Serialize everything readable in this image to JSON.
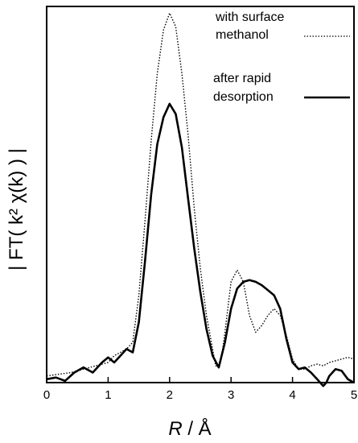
{
  "chart_data": {
    "type": "line",
    "title": "",
    "xlabel": {
      "italic": "R",
      "rest": " / Å"
    },
    "ylabel": "| FT( k² χ(k) ) |",
    "xlim": [
      0,
      5
    ],
    "ylim": [
      0,
      1.12
    ],
    "xticks": [
      "0",
      "1",
      "2",
      "3",
      "4",
      "5"
    ],
    "y_ticks_shown": false,
    "grid": false,
    "legend_position": "top-right",
    "series": [
      {
        "name": "with surface methanol",
        "line_style": "dotted",
        "color": "#000000",
        "points": [
          [
            0,
            0.02
          ],
          [
            0.2,
            0.025
          ],
          [
            0.4,
            0.03
          ],
          [
            0.6,
            0.04
          ],
          [
            0.8,
            0.05
          ],
          [
            1.0,
            0.06
          ],
          [
            1.1,
            0.08
          ],
          [
            1.2,
            0.09
          ],
          [
            1.3,
            0.1
          ],
          [
            1.4,
            0.12
          ],
          [
            1.5,
            0.26
          ],
          [
            1.6,
            0.48
          ],
          [
            1.7,
            0.72
          ],
          [
            1.8,
            0.92
          ],
          [
            1.9,
            1.05
          ],
          [
            2.0,
            1.1
          ],
          [
            2.1,
            1.06
          ],
          [
            2.2,
            0.92
          ],
          [
            2.3,
            0.74
          ],
          [
            2.4,
            0.52
          ],
          [
            2.5,
            0.34
          ],
          [
            2.6,
            0.2
          ],
          [
            2.7,
            0.1
          ],
          [
            2.75,
            0.05
          ],
          [
            2.8,
            0.05
          ],
          [
            2.85,
            0.08
          ],
          [
            2.9,
            0.15
          ],
          [
            3.0,
            0.3
          ],
          [
            3.1,
            0.335
          ],
          [
            3.2,
            0.3
          ],
          [
            3.3,
            0.2
          ],
          [
            3.4,
            0.15
          ],
          [
            3.5,
            0.17
          ],
          [
            3.6,
            0.2
          ],
          [
            3.7,
            0.22
          ],
          [
            3.8,
            0.2
          ],
          [
            3.9,
            0.14
          ],
          [
            4.0,
            0.07
          ],
          [
            4.1,
            0.04
          ],
          [
            4.2,
            0.04
          ],
          [
            4.3,
            0.05
          ],
          [
            4.4,
            0.055
          ],
          [
            4.5,
            0.05
          ],
          [
            4.6,
            0.06
          ],
          [
            4.7,
            0.065
          ],
          [
            4.8,
            0.07
          ],
          [
            4.9,
            0.075
          ],
          [
            5.0,
            0.07
          ]
        ]
      },
      {
        "name": "after rapid desorption",
        "line_style": "solid",
        "color": "#000000",
        "points": [
          [
            0,
            0.01
          ],
          [
            0.15,
            0.015
          ],
          [
            0.3,
            0.005
          ],
          [
            0.45,
            0.03
          ],
          [
            0.6,
            0.045
          ],
          [
            0.75,
            0.03
          ],
          [
            0.9,
            0.06
          ],
          [
            1.0,
            0.075
          ],
          [
            1.1,
            0.06
          ],
          [
            1.2,
            0.08
          ],
          [
            1.3,
            0.1
          ],
          [
            1.4,
            0.09
          ],
          [
            1.5,
            0.18
          ],
          [
            1.6,
            0.36
          ],
          [
            1.7,
            0.56
          ],
          [
            1.8,
            0.71
          ],
          [
            1.9,
            0.79
          ],
          [
            2.0,
            0.83
          ],
          [
            2.1,
            0.8
          ],
          [
            2.2,
            0.7
          ],
          [
            2.3,
            0.55
          ],
          [
            2.4,
            0.4
          ],
          [
            2.5,
            0.27
          ],
          [
            2.6,
            0.16
          ],
          [
            2.7,
            0.08
          ],
          [
            2.8,
            0.045
          ],
          [
            2.9,
            0.12
          ],
          [
            3.0,
            0.22
          ],
          [
            3.1,
            0.28
          ],
          [
            3.2,
            0.3
          ],
          [
            3.3,
            0.305
          ],
          [
            3.4,
            0.3
          ],
          [
            3.5,
            0.29
          ],
          [
            3.6,
            0.275
          ],
          [
            3.7,
            0.26
          ],
          [
            3.8,
            0.22
          ],
          [
            3.9,
            0.13
          ],
          [
            4.0,
            0.06
          ],
          [
            4.1,
            0.04
          ],
          [
            4.2,
            0.045
          ],
          [
            4.3,
            0.03
          ],
          [
            4.4,
            0.01
          ],
          [
            4.5,
            -0.01
          ],
          [
            4.55,
            0.0
          ],
          [
            4.6,
            0.02
          ],
          [
            4.7,
            0.04
          ],
          [
            4.8,
            0.035
          ],
          [
            4.9,
            0.01
          ],
          [
            5.0,
            0.0
          ]
        ]
      }
    ]
  }
}
